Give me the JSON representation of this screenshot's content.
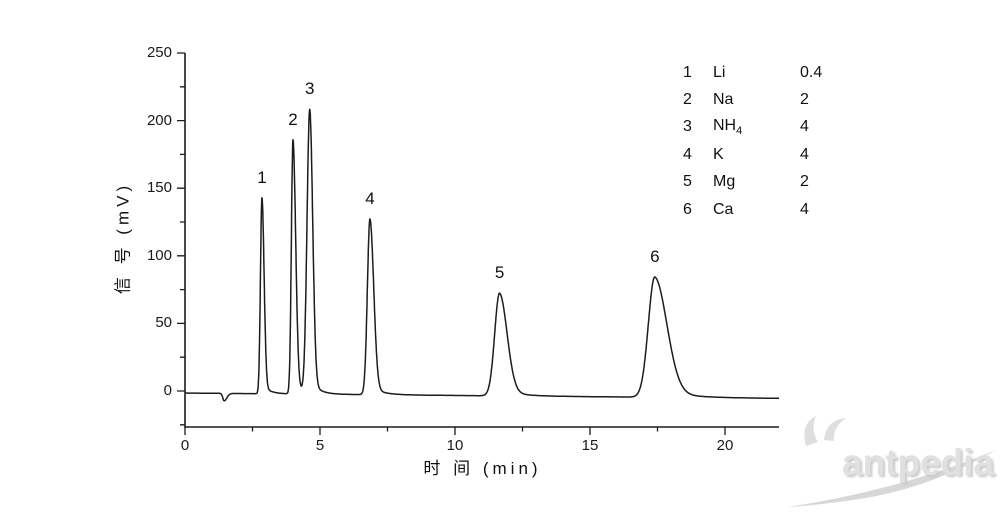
{
  "axes": {
    "x": {
      "title": "时 间 (min)",
      "tick_labels": [
        "0",
        "5",
        "10",
        "15",
        "20"
      ]
    },
    "y": {
      "title": "信 号 (mV)",
      "tick_labels": [
        "0",
        "50",
        "100",
        "150",
        "200",
        "250"
      ]
    }
  },
  "legend": {
    "rows": [
      {
        "index": "1",
        "name": "Li",
        "subscript": "",
        "value": "0.4"
      },
      {
        "index": "2",
        "name": "Na",
        "subscript": "",
        "value": "2"
      },
      {
        "index": "3",
        "name": "NH",
        "subscript": "4",
        "value": "4"
      },
      {
        "index": "4",
        "name": "K",
        "subscript": "",
        "value": "4"
      },
      {
        "index": "5",
        "name": "Mg",
        "subscript": "",
        "value": "2"
      },
      {
        "index": "6",
        "name": "Ca",
        "subscript": "",
        "value": "4"
      }
    ]
  },
  "watermark": {
    "text": "antpedia"
  },
  "chart_data": {
    "type": "line",
    "title": "",
    "xlabel": "时 间 (min)",
    "ylabel": "信 号 (mV)",
    "xlim": [
      0,
      22
    ],
    "ylim": [
      -27,
      250
    ],
    "x_major_ticks": [
      0,
      5,
      10,
      15,
      20
    ],
    "x_minor_step": 2.5,
    "y_major_ticks": [
      0,
      50,
      100,
      150,
      200,
      250
    ],
    "y_minor_step": 25,
    "grid": false,
    "legend_position": "upper right",
    "line_color": "#1c1c1c",
    "baseline_mV": {
      "start": -1.5,
      "drift_per_min": -0.18
    },
    "injection_dip": {
      "time": 1.45,
      "depth": -5.5,
      "sigma_left": 0.05,
      "sigma_right": 0.1
    },
    "peaks": [
      {
        "label": "1",
        "analyte": "Li",
        "concentration": "0.4",
        "retention_min": 2.85,
        "height_mV": 145,
        "sigma_left": 0.055,
        "sigma_right": 0.08,
        "tail_frac": 0.05,
        "tail_tau": 0.25
      },
      {
        "label": "2",
        "analyte": "Na",
        "concentration": "2",
        "retention_min": 4.0,
        "height_mV": 188,
        "sigma_left": 0.06,
        "sigma_right": 0.1,
        "tail_frac": 0.05,
        "tail_tau": 0.25
      },
      {
        "label": "3",
        "analyte": "NH4",
        "concentration": "4",
        "retention_min": 4.62,
        "height_mV": 210,
        "sigma_left": 0.1,
        "sigma_right": 0.11,
        "tail_frac": 0.05,
        "tail_tau": 0.3
      },
      {
        "label": "4",
        "analyte": "K",
        "concentration": "4",
        "retention_min": 6.85,
        "height_mV": 130,
        "sigma_left": 0.095,
        "sigma_right": 0.14,
        "tail_frac": 0.05,
        "tail_tau": 0.4
      },
      {
        "label": "5",
        "analyte": "Mg",
        "concentration": "2",
        "retention_min": 11.65,
        "height_mV": 76,
        "sigma_left": 0.18,
        "sigma_right": 0.28,
        "tail_frac": 0.07,
        "tail_tau": 0.6
      },
      {
        "label": "6",
        "analyte": "Ca",
        "concentration": "4",
        "retention_min": 17.4,
        "height_mV": 89,
        "sigma_left": 0.24,
        "sigma_right": 0.45,
        "tail_frac": 0.08,
        "tail_tau": 0.85
      }
    ]
  }
}
